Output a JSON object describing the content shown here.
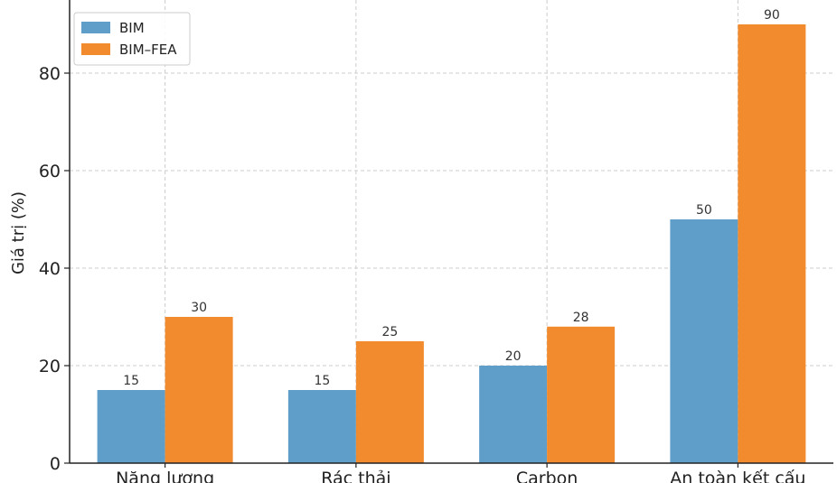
{
  "chart_data": {
    "type": "bar",
    "title": "",
    "xlabel": "",
    "ylabel": "Giá trị (%)",
    "categories": [
      "Năng lượng",
      "Rác thải",
      "Carbon",
      "An toàn kết cấu"
    ],
    "series": [
      {
        "name": "BIM",
        "values": [
          15,
          15,
          20,
          50
        ],
        "color": "#5f9ec9"
      },
      {
        "name": "BIM–FEA",
        "values": [
          30,
          25,
          28,
          90
        ],
        "color": "#f28b2d"
      }
    ],
    "ylim": [
      0,
      95
    ],
    "yticks": [
      0,
      20,
      40,
      60,
      80
    ],
    "grid": true,
    "legend_position": "top-left",
    "data_labels": true
  }
}
